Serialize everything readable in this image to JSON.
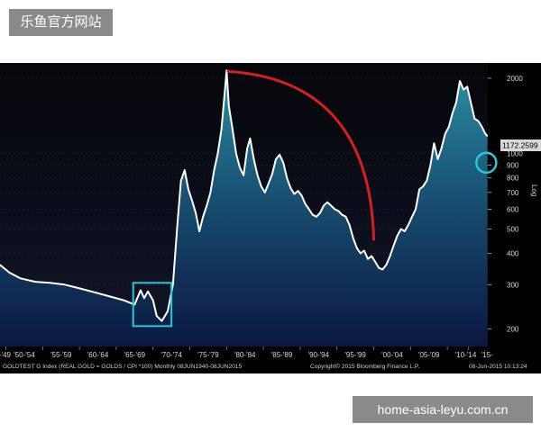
{
  "watermarks": {
    "top": "乐鱼官方网站",
    "bottom": "home-asia-leyu.com.cn"
  },
  "chart_data": {
    "type": "area",
    "title": "",
    "xlabel": "",
    "ylabel": "Log",
    "yscale": "log",
    "ylim": [
      170,
      2300
    ],
    "xlim": [
      1949.2,
      2015.5
    ],
    "yticks": [
      200,
      300,
      400,
      500,
      600,
      700,
      800,
      900,
      1000,
      2000
    ],
    "xticks": [
      {
        "label": "'?-'49",
        "x": 1949.5
      },
      {
        "label": "'50-'54",
        "x": 1952.5
      },
      {
        "label": "'55-'59",
        "x": 1957.5
      },
      {
        "label": "'60-'64",
        "x": 1962.5
      },
      {
        "label": "'65-'69",
        "x": 1967.5
      },
      {
        "label": "'70-'74",
        "x": 1972.5
      },
      {
        "label": "'75-'79",
        "x": 1977.5
      },
      {
        "label": "'80-'84",
        "x": 1982.5
      },
      {
        "label": "'85-'89",
        "x": 1987.5
      },
      {
        "label": "'90-'94",
        "x": 1992.5
      },
      {
        "label": "'95-'99",
        "x": 1997.5
      },
      {
        "label": "'00-'04",
        "x": 2002.5
      },
      {
        "label": "'05-'09",
        "x": 2007.5
      },
      {
        "label": "'10-'14",
        "x": 2012.5
      },
      {
        "label": "'15-",
        "x": 2015.4
      }
    ],
    "last_value_label": "1172.2599",
    "last_value": 1172.26,
    "series": [
      {
        "points": [
          [
            1949.2,
            360
          ],
          [
            1950.5,
            335
          ],
          [
            1952,
            318
          ],
          [
            1954,
            308
          ],
          [
            1956,
            305
          ],
          [
            1958,
            300
          ],
          [
            1960,
            290
          ],
          [
            1962,
            280
          ],
          [
            1964,
            270
          ],
          [
            1966,
            260
          ],
          [
            1967.5,
            250
          ],
          [
            1968.3,
            285
          ],
          [
            1968.8,
            265
          ],
          [
            1969.3,
            282
          ],
          [
            1970,
            260
          ],
          [
            1970.5,
            225
          ],
          [
            1971.2,
            215
          ],
          [
            1972,
            235
          ],
          [
            1972.7,
            300
          ],
          [
            1973.3,
            520
          ],
          [
            1973.8,
            780
          ],
          [
            1974.3,
            860
          ],
          [
            1974.8,
            720
          ],
          [
            1975.3,
            650
          ],
          [
            1975.8,
            580
          ],
          [
            1976.3,
            490
          ],
          [
            1976.8,
            560
          ],
          [
            1977.3,
            620
          ],
          [
            1977.8,
            700
          ],
          [
            1978.3,
            860
          ],
          [
            1978.8,
            1000
          ],
          [
            1979.3,
            1250
          ],
          [
            1979.7,
            1700
          ],
          [
            1980.0,
            2150
          ],
          [
            1980.3,
            1550
          ],
          [
            1980.8,
            1250
          ],
          [
            1981.3,
            1000
          ],
          [
            1981.8,
            880
          ],
          [
            1982.3,
            820
          ],
          [
            1982.8,
            1050
          ],
          [
            1983.2,
            1150
          ],
          [
            1983.7,
            950
          ],
          [
            1984.2,
            820
          ],
          [
            1984.7,
            740
          ],
          [
            1985.2,
            700
          ],
          [
            1985.7,
            760
          ],
          [
            1986.2,
            830
          ],
          [
            1986.7,
            950
          ],
          [
            1987.2,
            990
          ],
          [
            1987.7,
            920
          ],
          [
            1988.2,
            800
          ],
          [
            1988.7,
            730
          ],
          [
            1989.2,
            690
          ],
          [
            1989.7,
            710
          ],
          [
            1990.2,
            680
          ],
          [
            1990.7,
            630
          ],
          [
            1991.2,
            600
          ],
          [
            1991.7,
            570
          ],
          [
            1992.2,
            560
          ],
          [
            1992.7,
            580
          ],
          [
            1993.2,
            620
          ],
          [
            1993.7,
            640
          ],
          [
            1994.2,
            620
          ],
          [
            1994.7,
            600
          ],
          [
            1995.2,
            590
          ],
          [
            1995.7,
            570
          ],
          [
            1996.2,
            560
          ],
          [
            1996.7,
            520
          ],
          [
            1997.2,
            460
          ],
          [
            1997.7,
            420
          ],
          [
            1998.2,
            400
          ],
          [
            1998.7,
            410
          ],
          [
            1999.2,
            380
          ],
          [
            1999.7,
            390
          ],
          [
            2000.2,
            370
          ],
          [
            2000.7,
            350
          ],
          [
            2001.2,
            345
          ],
          [
            2001.7,
            360
          ],
          [
            2002.2,
            390
          ],
          [
            2002.7,
            430
          ],
          [
            2003.2,
            470
          ],
          [
            2003.7,
            500
          ],
          [
            2004.2,
            490
          ],
          [
            2004.7,
            520
          ],
          [
            2005.2,
            560
          ],
          [
            2005.7,
            600
          ],
          [
            2006.2,
            720
          ],
          [
            2006.7,
            740
          ],
          [
            2007.2,
            780
          ],
          [
            2007.7,
            900
          ],
          [
            2008.2,
            1100
          ],
          [
            2008.7,
            950
          ],
          [
            2009.2,
            1050
          ],
          [
            2009.7,
            1200
          ],
          [
            2010.2,
            1280
          ],
          [
            2010.7,
            1450
          ],
          [
            2011.2,
            1600
          ],
          [
            2011.7,
            1950
          ],
          [
            2012.2,
            1800
          ],
          [
            2012.7,
            1850
          ],
          [
            2013.2,
            1600
          ],
          [
            2013.7,
            1380
          ],
          [
            2014.2,
            1350
          ],
          [
            2014.7,
            1280
          ],
          [
            2015.1,
            1210
          ],
          [
            2015.45,
            1172
          ]
        ]
      }
    ],
    "annotations": [
      {
        "type": "highlight-box",
        "x": [
          1967.3,
          1972.5
        ],
        "y": [
          205,
          305
        ]
      },
      {
        "type": "circle",
        "x": 2015.3,
        "y": 920
      },
      {
        "type": "curve",
        "from": [
          1980.2,
          2130
        ],
        "to": [
          2000.0,
          455
        ]
      }
    ],
    "footer": {
      "left": "GOLDTEST G Index (REAL GOLD = GOLDS / CPI *100)  Monthly 08JUN1940-08JUN2015",
      "mid": "Copyright© 2015 Bloomberg Finance L.P.",
      "right": "08-Jun-2015 10:13:24"
    },
    "colors": {
      "line": "#ffffff",
      "area_top": "#2a8ea3",
      "area_bottom": "#0b1840",
      "highlight": "#27c7dc",
      "curve": "#d21f1f",
      "background": "#000000"
    }
  }
}
